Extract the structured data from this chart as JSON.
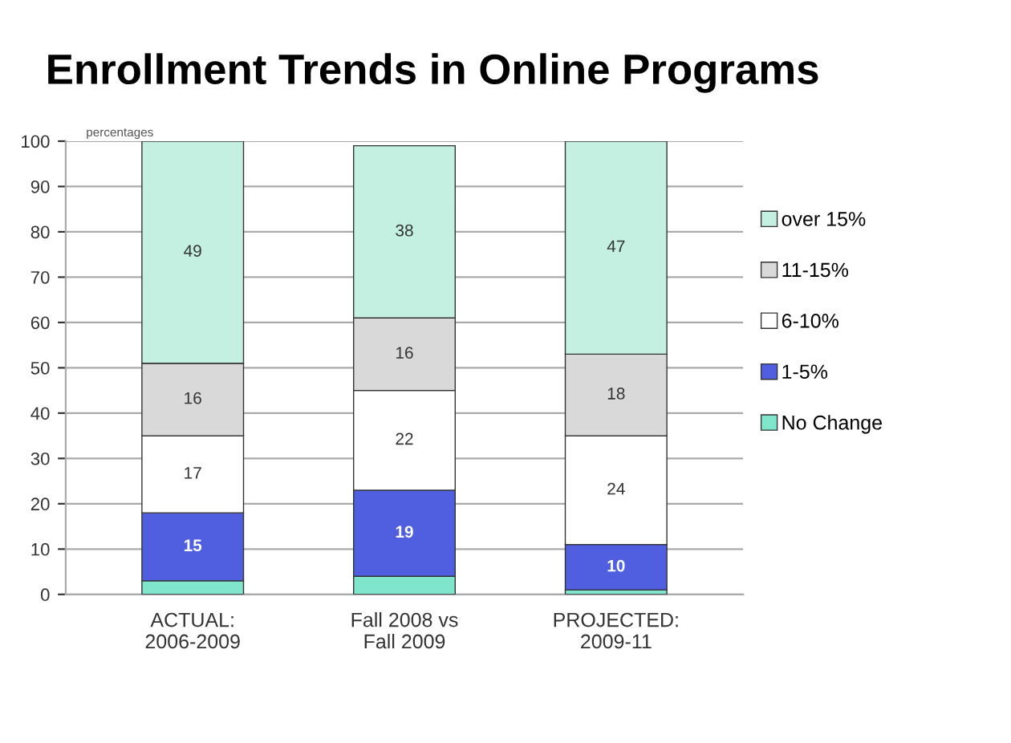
{
  "chart_data": {
    "type": "bar",
    "title": "Enrollment Trends in Online Programs",
    "ylabel": "percentages",
    "categories": [
      "ACTUAL:\n2006-2009",
      "Fall 2008 vs\nFall 2009",
      "PROJECTED:\n2009-11"
    ],
    "stacked": true,
    "series": [
      {
        "name": "No Change",
        "color": "#7fe6cc",
        "values": [
          3,
          4,
          1
        ],
        "value_labels": [
          null,
          null,
          null
        ]
      },
      {
        "name": "1-5%",
        "color": "#4f5fe0",
        "values": [
          15,
          19,
          10
        ],
        "value_labels": [
          "15",
          "19",
          "10"
        ]
      },
      {
        "name": "6-10%",
        "color": "#ffffff",
        "values": [
          17,
          22,
          24
        ],
        "value_labels": [
          "17",
          "22",
          "24"
        ]
      },
      {
        "name": "11-15%",
        "color": "#d9d9d9",
        "values": [
          16,
          16,
          18
        ],
        "value_labels": [
          "16",
          "16",
          "18"
        ]
      },
      {
        "name": "over 15%",
        "color": "#c4f0e2",
        "values": [
          49,
          38,
          47
        ],
        "value_labels": [
          "49",
          "38",
          "47"
        ]
      }
    ],
    "ylim": [
      0,
      100
    ],
    "yticks": [
      0,
      10,
      20,
      30,
      40,
      50,
      60,
      70,
      80,
      90,
      100
    ],
    "grid": "y",
    "legend": "right"
  }
}
